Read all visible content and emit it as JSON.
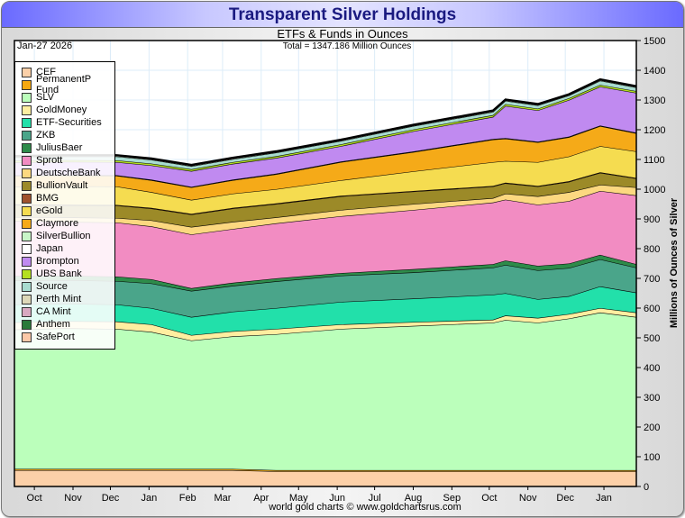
{
  "chart_data": {
    "type": "area",
    "title": "Transparent Silver Holdings",
    "subtitle": "ETFs & Funds in Ounces",
    "date_label": "Jan-27  2026",
    "total_label": "Total = 1347.186 Million Ounces",
    "ylabel": "Millions of Ounces of Silver",
    "xlabel": "",
    "credit": "world gold charts © www.goldchartsrus.com",
    "ylim": [
      0,
      1500
    ],
    "yticks": [
      0,
      100,
      200,
      300,
      400,
      500,
      600,
      700,
      800,
      900,
      1000,
      1100,
      1200,
      1300,
      1400,
      1500
    ],
    "xlim_days": [
      0,
      499
    ],
    "x_note": "days since mid-Sep 2024",
    "xticks": [
      {
        "label": "Oct",
        "day": 16
      },
      {
        "label": "Nov",
        "day": 47
      },
      {
        "label": "Dec",
        "day": 77
      },
      {
        "label": "Jan",
        "day": 108
      },
      {
        "label": "Feb",
        "day": 139
      },
      {
        "label": "Mar",
        "day": 167
      },
      {
        "label": "Apr",
        "day": 198
      },
      {
        "label": "May",
        "day": 228
      },
      {
        "label": "Jun",
        "day": 259
      },
      {
        "label": "Jul",
        "day": 289
      },
      {
        "label": "Aug",
        "day": 320
      },
      {
        "label": "Sep",
        "day": 351
      },
      {
        "label": "Oct",
        "day": 381
      },
      {
        "label": "Nov",
        "day": 412
      },
      {
        "label": "Dec",
        "day": 442
      },
      {
        "label": "Jan",
        "day": 473
      }
    ],
    "grid": true,
    "legend_position": "top-left",
    "x": [
      0,
      40,
      82,
      110,
      142,
      175,
      210,
      262,
      320,
      384,
      394,
      420,
      445,
      470,
      499
    ],
    "series": [
      {
        "name": "CEF",
        "color": "#fcd0a8",
        "values": [
          55,
          55,
          55,
          55,
          55,
          55,
          51,
          51,
          51,
          51,
          51,
          51,
          51,
          51,
          51
        ]
      },
      {
        "name": "PermanentP Fund",
        "color": "#f5a810",
        "values": [
          4,
          4,
          4,
          4,
          4,
          4,
          4,
          4,
          4,
          4,
          4,
          4,
          4,
          4,
          4
        ]
      },
      {
        "name": "SLV",
        "color": "#bbffbb",
        "values": [
          469,
          473,
          471,
          461,
          432,
          446,
          457,
          475,
          485,
          496,
          505,
          496,
          510,
          530,
          515
        ]
      },
      {
        "name": "GoldMoney",
        "color": "#ffeea0",
        "values": [
          24,
          24,
          25,
          25,
          18,
          17,
          18,
          15,
          13,
          10,
          15,
          16,
          15,
          15,
          15
        ]
      },
      {
        "name": "ETF-Securities",
        "color": "#22e0aa",
        "values": [
          60,
          59,
          57,
          55,
          61,
          66,
          70,
          76,
          79,
          84,
          75,
          63,
          60,
          73,
          67
        ]
      },
      {
        "name": "ZKB",
        "color": "#4aa58a",
        "values": [
          81,
          79,
          79,
          83,
          88,
          87,
          90,
          88,
          88,
          91,
          95,
          97,
          95,
          91,
          84
        ]
      },
      {
        "name": "JuliusBaer",
        "color": "#2e8b4a",
        "values": [
          15,
          15,
          15,
          14,
          9,
          10,
          10,
          9,
          11,
          12,
          15,
          15,
          15,
          15,
          12
        ]
      },
      {
        "name": "Sprott",
        "color": "#f28cc2",
        "values": [
          185,
          181,
          182,
          178,
          181,
          181,
          185,
          191,
          199,
          207,
          205,
          206,
          210,
          215,
          231
        ]
      },
      {
        "name": "DeutscheBank",
        "color": "#fcd880",
        "values": [
          13,
          15,
          15,
          20,
          25,
          24,
          20,
          21,
          20,
          15,
          20,
          28,
          30,
          21,
          27
        ]
      },
      {
        "name": "BullionVault",
        "color": "#9c8a28",
        "values": [
          41,
          41,
          42,
          40,
          42,
          45,
          45,
          46,
          42,
          39,
          35,
          33,
          35,
          40,
          30
        ]
      },
      {
        "name": "BMG",
        "color": "#a0522d",
        "values": [
          2,
          2,
          2,
          2,
          2,
          2,
          2,
          2,
          2,
          2,
          2,
          2,
          2,
          2,
          2
        ]
      },
      {
        "name": "eGold",
        "color": "#f5dc50",
        "values": [
          59,
          62,
          62,
          53,
          47,
          48,
          48,
          52,
          66,
          80,
          73,
          80,
          83,
          88,
          89
        ]
      },
      {
        "name": "Claymore",
        "color": "#f5aa18",
        "values": [
          37,
          36,
          36,
          40,
          42,
          45,
          50,
          61,
          65,
          76,
          75,
          67,
          65,
          67,
          61
        ]
      },
      {
        "name": "SilverBullion",
        "color": "#c8f5c8",
        "values": [
          1,
          1,
          1,
          1,
          1,
          1,
          1,
          1,
          1,
          1,
          1,
          1,
          1,
          1,
          1
        ]
      },
      {
        "name": "Japan",
        "color": "#ffffff",
        "values": [
          1,
          1,
          1,
          1,
          1,
          1,
          1,
          1,
          1,
          1,
          1,
          1,
          1,
          1,
          1
        ]
      },
      {
        "name": "Brompton",
        "color": "#c08af0",
        "values": [
          43,
          44,
          44,
          48,
          53,
          53,
          53,
          52,
          68,
          74,
          108,
          105,
          123,
          131,
          134
        ]
      },
      {
        "name": "UBS Bank",
        "color": "#b4e020",
        "values": [
          6,
          6,
          6,
          6,
          6,
          6,
          6,
          6,
          6,
          6,
          6,
          6,
          6,
          6,
          6
        ]
      },
      {
        "name": "Source",
        "color": "#a8dcd0",
        "values": [
          11,
          12,
          13,
          13,
          10,
          10,
          12,
          11,
          11,
          11,
          11,
          11,
          9,
          14,
          12
        ]
      },
      {
        "name": "Perth Mint",
        "color": "#ddd8b8",
        "values": [
          2,
          2,
          2,
          2,
          2,
          2,
          2,
          2,
          2,
          2,
          2,
          2,
          2,
          2,
          2
        ]
      },
      {
        "name": "CA Mint",
        "color": "#d8a8c0",
        "values": [
          1,
          1,
          1,
          1,
          1,
          1,
          1,
          1,
          1,
          1,
          1,
          1,
          1,
          1,
          1
        ]
      },
      {
        "name": "Anthem",
        "color": "#2a7a3a",
        "values": [
          1,
          1,
          1,
          1,
          1,
          1,
          1,
          1,
          1,
          1,
          1,
          1,
          1,
          1,
          1
        ]
      },
      {
        "name": "SafePort",
        "color": "#fcc8a8",
        "values": [
          1,
          1,
          1,
          1,
          1,
          1,
          1,
          1,
          1,
          1,
          1,
          1,
          1,
          1,
          1
        ]
      }
    ]
  }
}
